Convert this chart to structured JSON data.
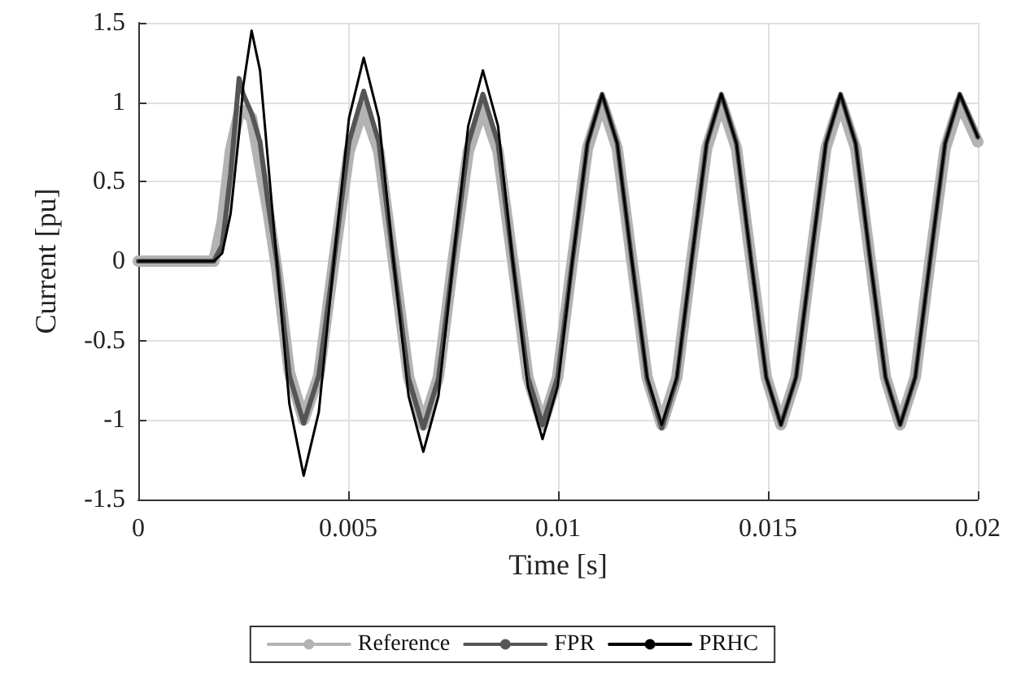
{
  "chart_data": {
    "type": "line",
    "xlabel": "Time [s]",
    "ylabel": "Current [pu]",
    "x": [
      0,
      0.0018,
      0.002,
      0.0022,
      0.0024,
      0.0025,
      0.0027,
      0.0029,
      0.0031,
      0.0033,
      0.0036,
      0.00394,
      0.0043,
      0.00466,
      0.00502,
      0.00537,
      0.00573,
      0.00608,
      0.00644,
      0.00679,
      0.00715,
      0.0075,
      0.00786,
      0.00821,
      0.00857,
      0.00892,
      0.00928,
      0.00963,
      0.00999,
      0.01034,
      0.0107,
      0.01105,
      0.01141,
      0.01176,
      0.01212,
      0.01247,
      0.01283,
      0.01318,
      0.01354,
      0.01389,
      0.01425,
      0.0146,
      0.01496,
      0.01531,
      0.01567,
      0.01602,
      0.01638,
      0.01673,
      0.01709,
      0.01744,
      0.0178,
      0.01815,
      0.01851,
      0.01886,
      0.01922,
      0.01957,
      0.02
    ],
    "series": [
      {
        "name": "Reference",
        "color": "#b3b3b3",
        "values": [
          0,
          0,
          0.25,
          0.7,
          0.93,
          0.95,
          0.9,
          0.6,
          0.3,
          -0.05,
          -0.7,
          -1.0,
          -0.72,
          0,
          0.69,
          0.97,
          0.69,
          0,
          -0.73,
          -1.03,
          -0.73,
          0,
          0.69,
          0.97,
          0.69,
          0,
          -0.73,
          -1.03,
          -0.73,
          0,
          0.71,
          1.0,
          0.71,
          0,
          -0.73,
          -1.03,
          -0.73,
          0,
          0.71,
          1.0,
          0.71,
          0,
          -0.73,
          -1.03,
          -0.73,
          0,
          0.71,
          1.0,
          0.71,
          0,
          -0.73,
          -1.03,
          -0.73,
          0,
          0.71,
          1.0,
          0.75
        ]
      },
      {
        "name": "FPR",
        "color": "#555555",
        "values": [
          0,
          0,
          0.1,
          0.55,
          1.15,
          1.05,
          0.93,
          0.75,
          0.35,
          0,
          -0.72,
          -1.02,
          -0.72,
          0,
          0.75,
          1.07,
          0.75,
          0,
          -0.74,
          -1.05,
          -0.74,
          0,
          0.74,
          1.05,
          0.74,
          0,
          -0.73,
          -1.03,
          -0.73,
          0,
          0.74,
          1.05,
          0.74,
          0,
          -0.74,
          -1.05,
          -0.74,
          0,
          0.74,
          1.05,
          0.74,
          0,
          -0.73,
          -1.03,
          -0.73,
          0,
          0.74,
          1.05,
          0.74,
          0,
          -0.73,
          -1.03,
          -0.73,
          0,
          0.74,
          1.05,
          0.78
        ]
      },
      {
        "name": "PRHC",
        "color": "#000000",
        "values": [
          0,
          0,
          0.05,
          0.3,
          0.8,
          1.1,
          1.45,
          1.2,
          0.6,
          0,
          -0.9,
          -1.35,
          -0.95,
          0,
          0.9,
          1.28,
          0.9,
          0,
          -0.85,
          -1.2,
          -0.85,
          0,
          0.85,
          1.2,
          0.85,
          0,
          -0.79,
          -1.12,
          -0.79,
          0,
          0.74,
          1.05,
          0.74,
          0,
          -0.73,
          -1.03,
          -0.73,
          0,
          0.74,
          1.05,
          0.74,
          0,
          -0.73,
          -1.03,
          -0.73,
          0,
          0.74,
          1.05,
          0.74,
          0,
          -0.73,
          -1.03,
          -0.73,
          0,
          0.74,
          1.05,
          0.78
        ]
      }
    ],
    "xlim": [
      0,
      0.02
    ],
    "xticks": [
      0,
      0.005,
      0.01,
      0.015,
      0.02
    ],
    "ylim": [
      -1.5,
      1.5
    ],
    "yticks": [
      -1.5,
      -1,
      -0.5,
      0,
      0.5,
      1,
      1.5
    ],
    "grid": true,
    "legend": "bottom",
    "line_style": "solid",
    "marker": "none"
  }
}
